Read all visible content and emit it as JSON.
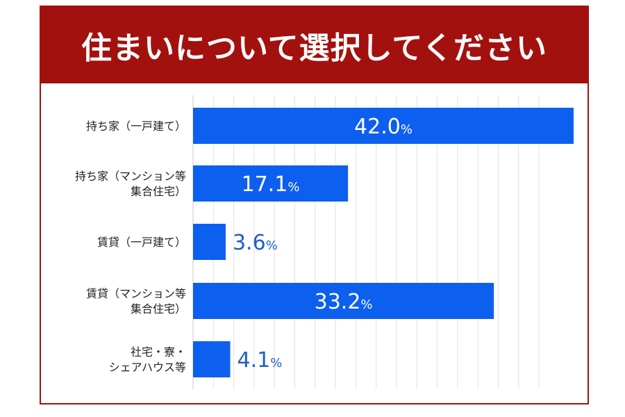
{
  "chart_data": {
    "type": "bar",
    "orientation": "horizontal",
    "title": "住まいについて選択してください",
    "categories": [
      [
        "持ち家（一戸建て）"
      ],
      [
        "持ち家（マンション等",
        "集合住宅）"
      ],
      [
        "賃貸（一戸建て）"
      ],
      [
        "賃貸（マンション等",
        "集合住宅）"
      ],
      [
        "社宅・寮・",
        "シェアハウス等"
      ]
    ],
    "values": [
      42.0,
      17.1,
      3.6,
      33.2,
      4.1
    ],
    "unit": "%",
    "grid": true,
    "colors": {
      "bar": "#0d5ff0",
      "header": "#a3110f",
      "label_outside": "#1f5fc8",
      "label_inside": "#ffffff",
      "grid": "#e2e2e2"
    }
  }
}
